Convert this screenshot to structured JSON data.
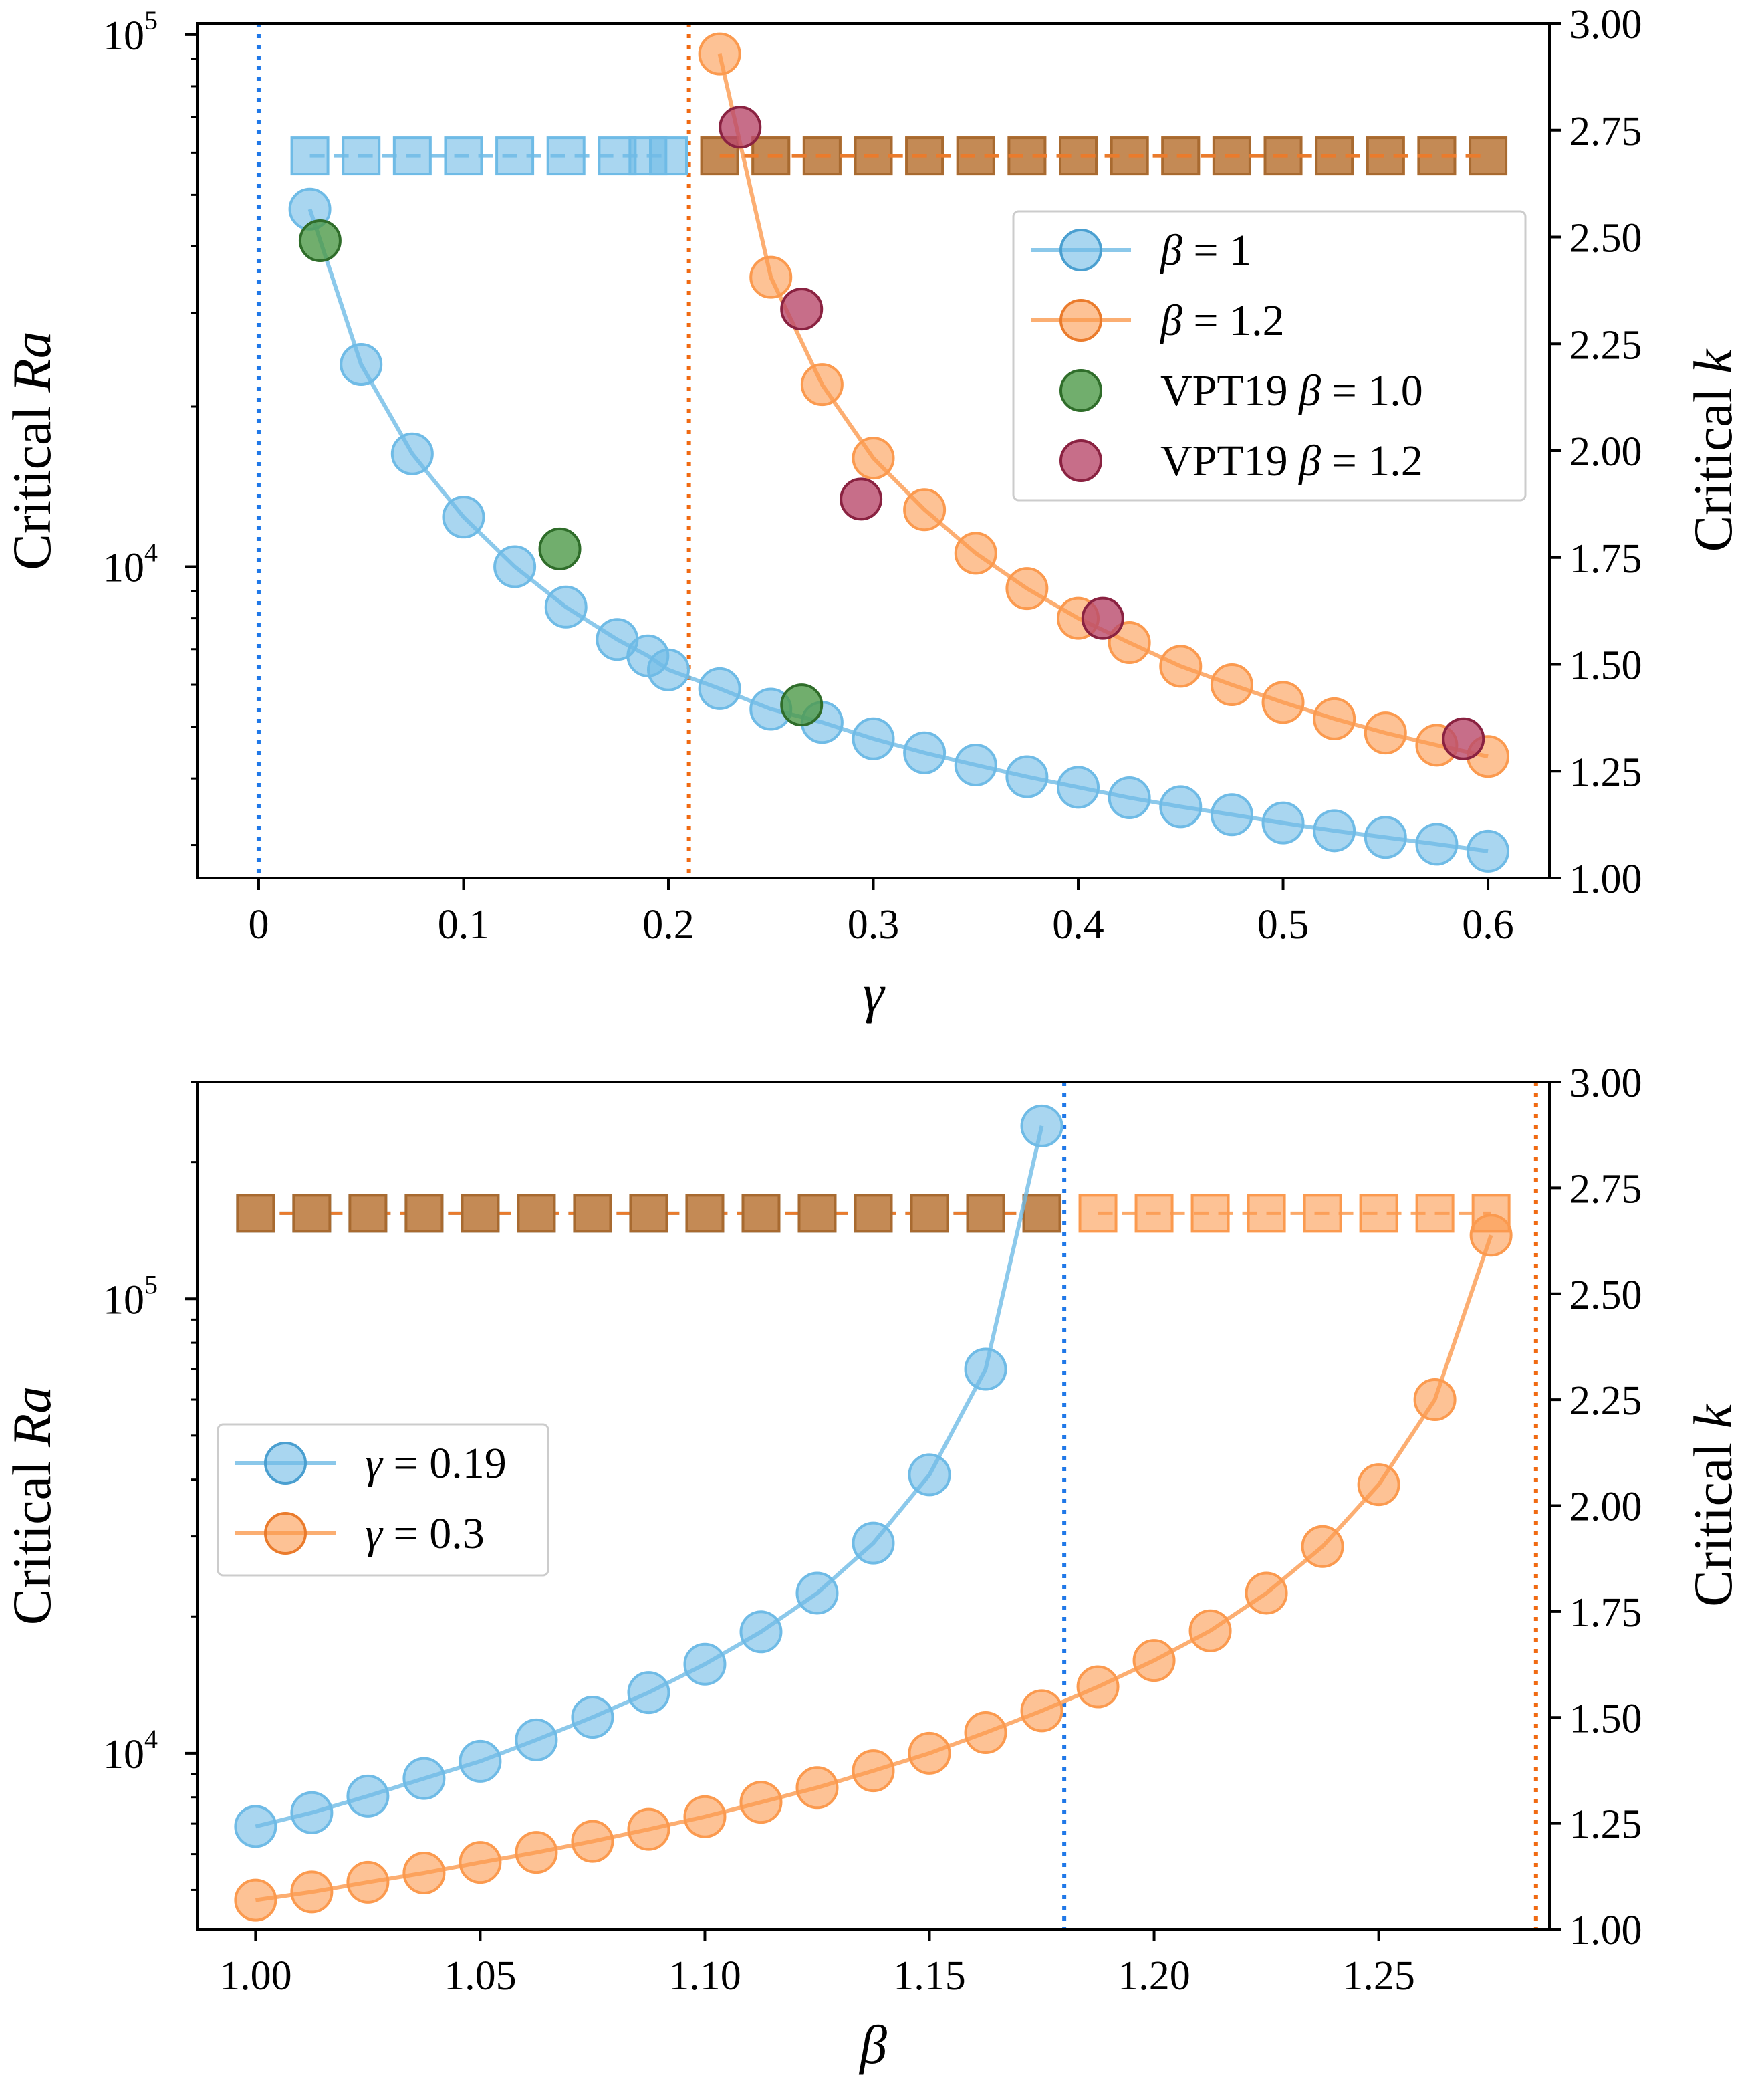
{
  "colors": {
    "blue": "#6fbbe6",
    "blue_dark": "#4a9fd0",
    "orange": "#fb9a4f",
    "orange_dark": "#ea7b2c",
    "brown": "#c48a55",
    "brown_dark": "#a86a30",
    "green": "#4e9a48",
    "green_dark": "#2f6d2a",
    "purple": "#b94a6c",
    "purple_dark": "#8a2241",
    "vline_blue": "#1f78e8",
    "vline_orange": "#f06a12"
  },
  "chart_data": [
    {
      "type": "line",
      "id": "top",
      "xlabel": "γ",
      "ylabel": "Critical Ra",
      "ylabel_parts": [
        "Critical ",
        "Ra"
      ],
      "y2label": "Critical k",
      "y2label_parts": [
        "Critical ",
        "k"
      ],
      "xlim": [
        -0.03,
        0.63
      ],
      "ylim_log": [
        2600,
        105000
      ],
      "y2lim": [
        1.0,
        3.0
      ],
      "x_ticks": [
        0,
        0.1,
        0.2,
        0.3,
        0.4,
        0.5,
        0.6
      ],
      "x_tick_labels": [
        "0",
        "0.1",
        "0.2",
        "0.3",
        "0.4",
        "0.5",
        "0.6"
      ],
      "y_major_ticks": [
        {
          "value": 10000,
          "base": "10",
          "exp": "4"
        },
        {
          "value": 100000,
          "base": "10",
          "exp": "5"
        }
      ],
      "y2_ticks": [
        1.0,
        1.25,
        1.5,
        1.75,
        2.0,
        2.25,
        2.5,
        2.75,
        3.0
      ],
      "y2_tick_labels": [
        "1.00",
        "1.25",
        "1.50",
        "1.75",
        "2.00",
        "2.25",
        "2.50",
        "2.75",
        "3.00"
      ],
      "vlines": [
        {
          "x": 0.0,
          "color": "vline_blue"
        },
        {
          "x": 0.21,
          "color": "vline_orange"
        }
      ],
      "series": [
        {
          "name": "β = 1",
          "label_main": "β",
          "label_rest": " = 1",
          "color": "blue",
          "x": [
            0.025,
            0.05,
            0.075,
            0.1,
            0.125,
            0.15,
            0.175,
            0.19,
            0.2,
            0.225,
            0.25,
            0.275,
            0.3,
            0.325,
            0.35,
            0.375,
            0.4,
            0.425,
            0.45,
            0.475,
            0.5,
            0.525,
            0.55,
            0.575,
            0.6
          ],
          "ra": [
            47000,
            24000,
            16300,
            12400,
            10000,
            8400,
            7300,
            6800,
            6400,
            5900,
            5400,
            5100,
            4750,
            4470,
            4240,
            4030,
            3850,
            3680,
            3540,
            3420,
            3300,
            3190,
            3100,
            3010,
            2920
          ],
          "k_x": [
            0.025,
            0.05,
            0.075,
            0.1,
            0.125,
            0.15,
            0.175,
            0.19,
            0.2
          ],
          "k": [
            2.69,
            2.69,
            2.69,
            2.69,
            2.69,
            2.69,
            2.69,
            2.69,
            2.69
          ]
        },
        {
          "name": "β = 1.2",
          "label_main": "β",
          "label_rest": " = 1.2",
          "color": "orange",
          "x": [
            0.225,
            0.25,
            0.275,
            0.3,
            0.325,
            0.35,
            0.375,
            0.4,
            0.425,
            0.45,
            0.475,
            0.5,
            0.525,
            0.55,
            0.575,
            0.6
          ],
          "ra": [
            92000,
            35000,
            22000,
            16000,
            12800,
            10600,
            9100,
            8000,
            7200,
            6500,
            6000,
            5560,
            5180,
            4870,
            4620,
            4400
          ],
          "k_x": [
            0.225,
            0.25,
            0.275,
            0.3,
            0.325,
            0.35,
            0.375,
            0.4,
            0.425,
            0.45,
            0.475,
            0.5,
            0.525,
            0.55,
            0.575,
            0.6
          ],
          "k": [
            2.69,
            2.69,
            2.69,
            2.69,
            2.69,
            2.69,
            2.69,
            2.69,
            2.69,
            2.69,
            2.69,
            2.69,
            2.69,
            2.69,
            2.69,
            2.69
          ]
        }
      ],
      "points": [
        {
          "name": "VPT19 β = 1.0",
          "label_pre": "VPT19 ",
          "label_main": "β",
          "label_rest": " = 1.0",
          "color": "green",
          "x": [
            0.03,
            0.147,
            0.265
          ],
          "ra": [
            41000,
            10800,
            5500
          ]
        },
        {
          "name": "VPT19 β = 1.2",
          "label_pre": "VPT19 ",
          "label_main": "β",
          "label_rest": " = 1.2",
          "color": "purple",
          "x": [
            0.235,
            0.265,
            0.294,
            0.412,
            0.588
          ],
          "ra": [
            67000,
            30500,
            13400,
            8000,
            4750
          ]
        }
      ],
      "legend_loc": "center-right"
    },
    {
      "type": "line",
      "id": "bottom",
      "xlabel": "β",
      "ylabel": "Critical Ra",
      "ylabel_parts": [
        "Critical ",
        "Ra"
      ],
      "y2label": "Critical k",
      "y2label_parts": [
        "Critical ",
        "k"
      ],
      "xlim": [
        0.987,
        1.288
      ],
      "ylim_log": [
        4100,
        300000
      ],
      "y2lim": [
        1.0,
        3.0
      ],
      "x_ticks": [
        1.0,
        1.05,
        1.1,
        1.15,
        1.2,
        1.25
      ],
      "x_tick_labels": [
        "1.00",
        "1.05",
        "1.10",
        "1.15",
        "1.20",
        "1.25"
      ],
      "y_major_ticks": [
        {
          "value": 10000,
          "base": "10",
          "exp": "4"
        },
        {
          "value": 100000,
          "base": "10",
          "exp": "5"
        }
      ],
      "y2_ticks": [
        1.0,
        1.25,
        1.5,
        1.75,
        2.0,
        2.25,
        2.5,
        2.75,
        3.0
      ],
      "y2_tick_labels": [
        "1.00",
        "1.25",
        "1.50",
        "1.75",
        "2.00",
        "2.25",
        "2.50",
        "2.75",
        "3.00"
      ],
      "vlines": [
        {
          "x": 1.18,
          "color": "vline_blue"
        },
        {
          "x": 1.285,
          "color": "vline_orange"
        }
      ],
      "series": [
        {
          "name": "γ = 0.19",
          "label_main": "γ",
          "label_rest": " = 0.19",
          "color": "blue",
          "x": [
            1.0,
            1.0125,
            1.025,
            1.0375,
            1.05,
            1.0625,
            1.075,
            1.0875,
            1.1,
            1.1125,
            1.125,
            1.1375,
            1.15,
            1.1625,
            1.175
          ],
          "ra": [
            6900,
            7400,
            8050,
            8800,
            9600,
            10700,
            12000,
            13600,
            15700,
            18500,
            22500,
            29000,
            41000,
            70000,
            240000
          ],
          "k_x": [
            1.0,
            1.0125,
            1.025,
            1.0375,
            1.05,
            1.0625,
            1.075,
            1.0875,
            1.1,
            1.1125,
            1.125,
            1.1375,
            1.15,
            1.1625,
            1.175
          ],
          "k": [
            2.69,
            2.69,
            2.69,
            2.69,
            2.69,
            2.69,
            2.69,
            2.69,
            2.69,
            2.69,
            2.69,
            2.69,
            2.69,
            2.69,
            2.69
          ]
        },
        {
          "name": "γ = 0.3",
          "label_main": "γ",
          "label_rest": " = 0.3",
          "color": "orange",
          "x": [
            1.0,
            1.0125,
            1.025,
            1.0375,
            1.05,
            1.0625,
            1.075,
            1.0875,
            1.1,
            1.1125,
            1.125,
            1.1375,
            1.15,
            1.1625,
            1.175,
            1.1875,
            1.2,
            1.2125,
            1.225,
            1.2375,
            1.25,
            1.2625,
            1.275
          ],
          "ra": [
            4750,
            4950,
            5200,
            5450,
            5750,
            6050,
            6400,
            6800,
            7250,
            7800,
            8400,
            9150,
            10000,
            11100,
            12400,
            14000,
            16000,
            18600,
            22500,
            28500,
            39000,
            60000,
            138000
          ],
          "k_x": [
            1.1875,
            1.2,
            1.2125,
            1.225,
            1.2375,
            1.25,
            1.2625,
            1.275
          ],
          "k": [
            2.69,
            2.69,
            2.69,
            2.69,
            2.69,
            2.69,
            2.69,
            2.69
          ]
        }
      ],
      "overlap_squares": {
        "color": "brown",
        "x": [
          1.0,
          1.0125,
          1.025,
          1.0375,
          1.05,
          1.0625,
          1.075,
          1.0875,
          1.1,
          1.1125,
          1.125,
          1.1375,
          1.15,
          1.1625,
          1.175
        ],
        "k": 2.69
      },
      "legend_loc": "center-left"
    }
  ]
}
